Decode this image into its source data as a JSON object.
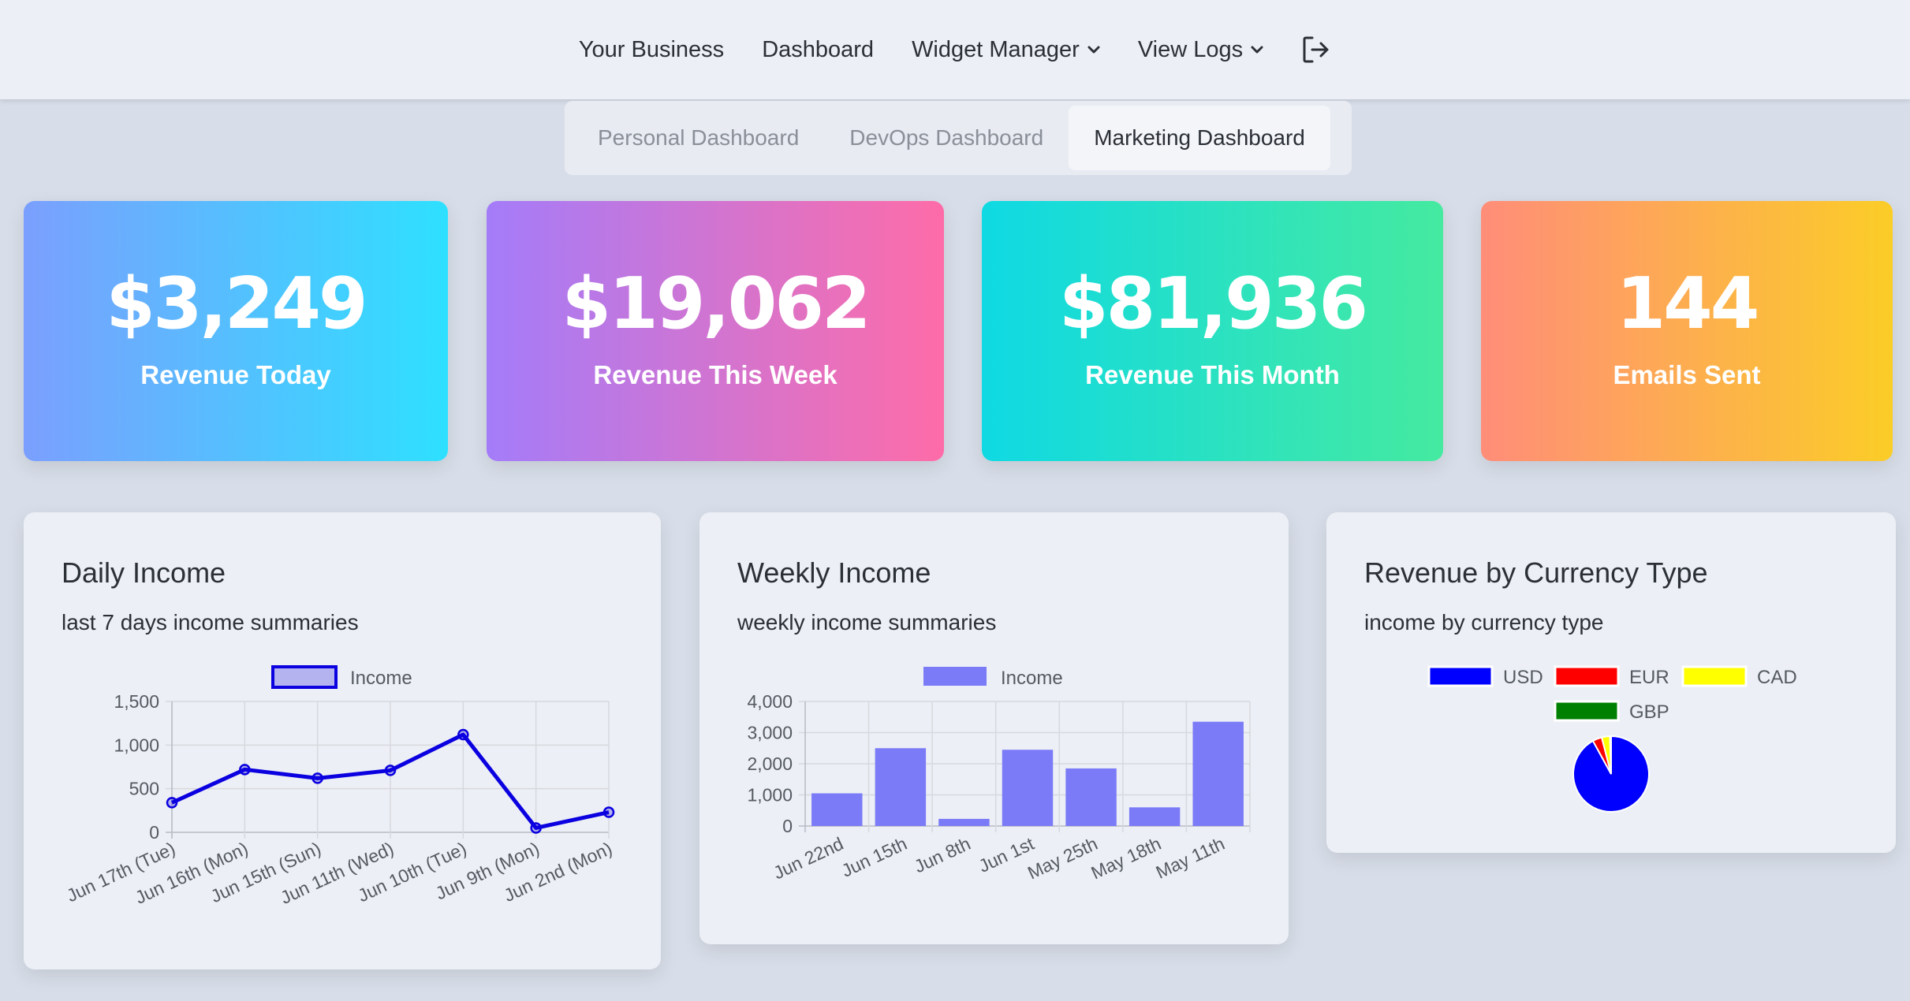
{
  "nav": {
    "items": [
      {
        "label": "Your Business"
      },
      {
        "label": "Dashboard"
      },
      {
        "label": "Widget Manager"
      },
      {
        "label": "View Logs"
      }
    ]
  },
  "tabs": [
    {
      "label": "Personal Dashboard",
      "active": false
    },
    {
      "label": "DevOps Dashboard",
      "active": false
    },
    {
      "label": "Marketing Dashboard",
      "active": true
    }
  ],
  "stats": [
    {
      "value": "$3,249",
      "label": "Revenue Today"
    },
    {
      "value": "$19,062",
      "label": "Revenue This Week"
    },
    {
      "value": "$81,936",
      "label": "Revenue This Month"
    },
    {
      "value": "144",
      "label": "Emails Sent"
    }
  ],
  "panels": {
    "daily": {
      "title": "Daily Income",
      "subtitle": "last 7 days income summaries"
    },
    "weekly": {
      "title": "Weekly Income",
      "subtitle": "weekly income summaries"
    },
    "currency": {
      "title": "Revenue by Currency Type",
      "subtitle": "income by currency type"
    }
  },
  "colors": {
    "line": "#0a00e0",
    "bar": "#7b7bf7",
    "usd": "#0000ff",
    "eur": "#ff0000",
    "cad": "#ffff00",
    "gbp": "#008000"
  },
  "chart_data": [
    {
      "type": "line",
      "categories": [
        "Jun 17th (Tue)",
        "Jun 16th (Mon)",
        "Jun 15th (Sun)",
        "Jun 11th (Wed)",
        "Jun 10th (Tue)",
        "Jun 9th (Mon)",
        "Jun 2nd (Mon)"
      ],
      "series": [
        {
          "name": "Income",
          "values": [
            340,
            720,
            620,
            710,
            1120,
            50,
            230
          ]
        }
      ],
      "ylim": [
        0,
        1500
      ],
      "yticks": [
        "0",
        "500",
        "1,000",
        "1,500"
      ],
      "grid": true,
      "legend": "top"
    },
    {
      "type": "bar",
      "categories": [
        "Jun 22nd",
        "Jun 15th",
        "Jun 8th",
        "Jun 1st",
        "May 25th",
        "May 18th",
        "May 11th"
      ],
      "series": [
        {
          "name": "Income",
          "values": [
            1050,
            2500,
            230,
            2450,
            1850,
            600,
            3350
          ]
        }
      ],
      "ylim": [
        0,
        4000
      ],
      "yticks": [
        "0",
        "1,000",
        "2,000",
        "3,000",
        "4,000"
      ],
      "grid": true,
      "legend": "top"
    },
    {
      "type": "pie",
      "labels": [
        "USD",
        "EUR",
        "CAD",
        "GBP"
      ],
      "values": [
        92,
        4,
        3.5,
        0.5
      ],
      "legend": "top"
    }
  ]
}
